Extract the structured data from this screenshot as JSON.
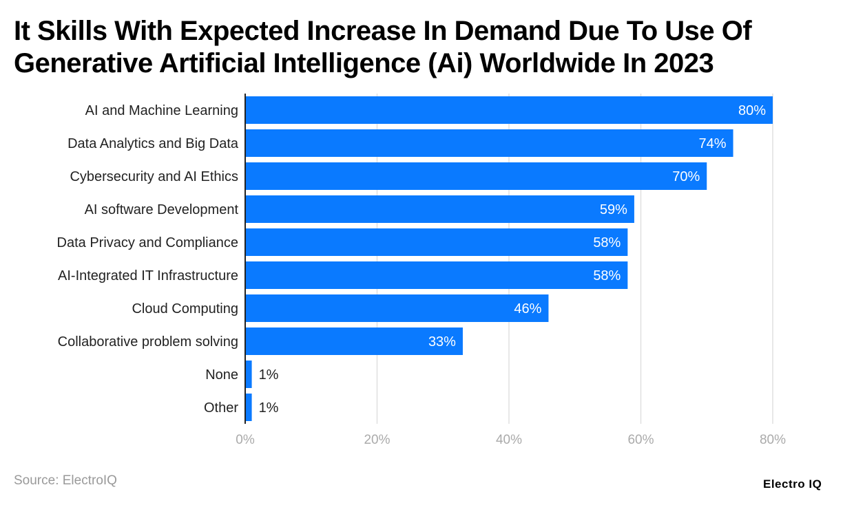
{
  "chart_data": {
    "type": "bar",
    "orientation": "horizontal",
    "title": "It Skills With Expected Increase In Demand Due To Use Of Generative Artificial Intelligence (Ai) Worldwide In 2023",
    "categories": [
      "AI and Machine Learning",
      "Data Analytics and Big Data",
      "Cybersecurity and AI Ethics",
      "AI software Development",
      "Data Privacy and Compliance",
      "AI-Integrated IT Infrastructure",
      "Cloud Computing",
      "Collaborative problem solving",
      "None",
      "Other"
    ],
    "values": [
      80,
      74,
      70,
      59,
      58,
      58,
      46,
      33,
      1,
      1
    ],
    "data_labels": [
      "80%",
      "74%",
      "70%",
      "59%",
      "58%",
      "58%",
      "46%",
      "33%",
      "1%",
      "1%"
    ],
    "xlim": [
      0,
      80
    ],
    "x_ticks": [
      0,
      20,
      40,
      60,
      80
    ],
    "x_tick_labels": [
      "0%",
      "20%",
      "40%",
      "60%",
      "80%"
    ],
    "grid": true,
    "bar_color": "#0a7aff"
  },
  "source": "Source: ElectroIQ",
  "logo": "Electro IQ"
}
